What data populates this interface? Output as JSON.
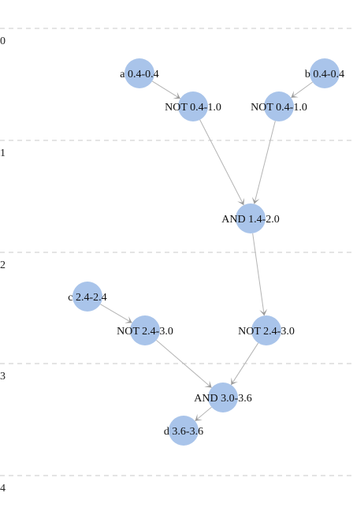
{
  "colors": {
    "node_fill": "#a9c4ea",
    "edge": "#b4b4b4",
    "arrowhead": "#9a9a9a",
    "grid": "#c8c8c8",
    "text": "#111111"
  },
  "axis": {
    "ticks": [
      "0",
      "1",
      "2",
      "3",
      "4"
    ]
  },
  "nodes": [
    {
      "id": "a",
      "label": "a 0.4-0.4"
    },
    {
      "id": "b",
      "label": "b 0.4-0.4"
    },
    {
      "id": "not1",
      "label": "NOT 0.4-1.0"
    },
    {
      "id": "not2",
      "label": "NOT 0.4-1.0"
    },
    {
      "id": "and1",
      "label": "AND 1.4-2.0"
    },
    {
      "id": "c",
      "label": "c 2.4-2.4"
    },
    {
      "id": "not3",
      "label": "NOT 2.4-3.0"
    },
    {
      "id": "not4",
      "label": "NOT 2.4-3.0"
    },
    {
      "id": "and2",
      "label": "AND 3.0-3.6"
    },
    {
      "id": "d",
      "label": "d 3.6-3.6"
    }
  ],
  "edges": [
    {
      "from": "a",
      "to": "not1"
    },
    {
      "from": "b",
      "to": "not2"
    },
    {
      "from": "not1",
      "to": "and1"
    },
    {
      "from": "not2",
      "to": "and1"
    },
    {
      "from": "and1",
      "to": "not4"
    },
    {
      "from": "c",
      "to": "not3"
    },
    {
      "from": "not3",
      "to": "and2"
    },
    {
      "from": "not4",
      "to": "and2"
    },
    {
      "from": "and2",
      "to": "d"
    }
  ]
}
